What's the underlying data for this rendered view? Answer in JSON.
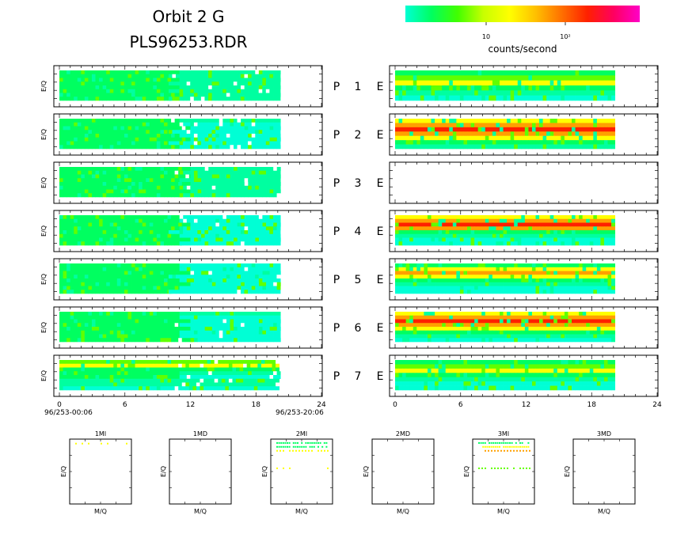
{
  "header": {
    "title_line1": "Orbit 2 G",
    "title_line2": "PLS96253.RDR"
  },
  "colorbar": {
    "colors": [
      "#00ffd5",
      "#00ff60",
      "#40ff00",
      "#c8ff00",
      "#ffff00",
      "#ffc000",
      "#ff7000",
      "#ff2000",
      "#ff0060",
      "#ff00c8"
    ],
    "tick_labels": [
      "10",
      "10²"
    ],
    "unit_label": "counts/second"
  },
  "palette": {
    "cyan": "#00ffd5",
    "aqua": "#00ffa0",
    "green": "#00ff60",
    "lime": "#60ff00",
    "yellow": "#ffff00",
    "orange": "#ffa000",
    "red": "#ff2000"
  },
  "chart_data": [
    {
      "type": "heatmap",
      "id": "left-spectrograms",
      "ylabel": "E/Q",
      "xlim": [
        0,
        24
      ],
      "xticks": [
        "0",
        "6",
        "12",
        "18",
        "24"
      ],
      "data_extent_hours": [
        0,
        20
      ],
      "start_label": "96/253-00:06",
      "end_label": "96/253-20:06",
      "panels": [
        {
          "rows": [
            [
              "green",
              11,
              "aqua",
              20
            ],
            [
              "green",
              10,
              "aqua",
              20
            ],
            [
              "green",
              11,
              "aqua",
              20
            ],
            [
              "green",
              10,
              "aqua",
              20
            ],
            [
              "green",
              11,
              "aqua",
              20
            ],
            [
              "green",
              10,
              "aqua",
              20
            ],
            [
              "green",
              11,
              "aqua",
              20
            ],
            [
              "green",
              10,
              "aqua",
              20
            ]
          ]
        },
        {
          "rows": [
            [
              "green",
              11,
              "aqua",
              20
            ],
            [
              "green",
              11,
              "cyan",
              20
            ],
            [
              "green",
              12,
              "cyan",
              20
            ],
            [
              "green",
              10,
              "cyan",
              20
            ],
            [
              "green",
              11,
              "cyan",
              20
            ],
            [
              "green",
              12,
              "cyan",
              20
            ],
            [
              "green",
              10,
              "cyan",
              20
            ],
            [
              "green",
              11,
              "cyan",
              20
            ]
          ]
        },
        {
          "rows": [
            [
              "green",
              12,
              "aqua",
              20
            ],
            [
              "green",
              11,
              "aqua",
              20
            ],
            [
              "green",
              12,
              "aqua",
              20
            ],
            [
              "green",
              11,
              "aqua",
              20
            ],
            [
              "green",
              12,
              "aqua",
              20
            ],
            [
              "green",
              11,
              "aqua",
              20
            ],
            [
              "green",
              12,
              "aqua",
              20
            ],
            [
              "green",
              11,
              "aqua",
              20
            ]
          ]
        },
        {
          "rows": [
            [
              "green",
              11,
              "cyan",
              20
            ],
            [
              "green",
              11,
              "cyan",
              20
            ],
            [
              "green",
              12,
              "cyan",
              20
            ],
            [
              "green",
              11,
              "cyan",
              20
            ],
            [
              "green",
              10,
              "cyan",
              20
            ],
            [
              "green",
              11,
              "cyan",
              20
            ],
            [
              "green",
              12,
              "cyan",
              20
            ],
            [
              "green",
              11,
              "cyan",
              20
            ]
          ]
        },
        {
          "rows": [
            [
              "green",
              11,
              "cyan",
              20
            ],
            [
              "green",
              11,
              "cyan",
              20
            ],
            [
              "green",
              12,
              "cyan",
              20
            ],
            [
              "green",
              10,
              "cyan",
              20
            ],
            [
              "green",
              11,
              "cyan",
              20
            ],
            [
              "green",
              12,
              "cyan",
              20
            ],
            [
              "green",
              11,
              "cyan",
              20
            ],
            [
              "green",
              10,
              "cyan",
              20
            ]
          ]
        },
        {
          "rows": [
            [
              "green",
              11,
              "aqua",
              20
            ],
            [
              "green",
              11,
              "cyan",
              20
            ],
            [
              "green",
              12,
              "cyan",
              20
            ],
            [
              "green",
              11,
              "cyan",
              20
            ],
            [
              "green",
              12,
              "cyan",
              20
            ],
            [
              "green",
              11,
              "cyan",
              20
            ],
            [
              "green",
              11,
              "cyan",
              20
            ],
            [
              "green",
              12,
              "cyan",
              20
            ]
          ]
        },
        {
          "rows": [
            [
              "lime",
              20
            ],
            [
              "yellow",
              20
            ],
            [
              "green",
              20
            ],
            [
              "green",
              11,
              "aqua",
              20
            ],
            [
              "green",
              11,
              "cyan",
              20
            ],
            [
              "aqua",
              20
            ],
            [
              "aqua",
              20
            ],
            [
              "cyan",
              20
            ]
          ]
        }
      ]
    },
    {
      "type": "heatmap",
      "id": "right-spectrograms",
      "xlim": [
        0,
        24
      ],
      "xticks": [
        "0",
        "6",
        "12",
        "18",
        "24"
      ],
      "data_extent_hours": [
        0,
        20
      ],
      "panels": [
        {
          "rows": [
            [
              "green",
              20
            ],
            [
              "lime",
              20
            ],
            [
              "yellow",
              20
            ],
            [
              "green",
              20
            ],
            [
              "aqua",
              20
            ],
            [
              "cyan",
              20
            ]
          ]
        },
        {
          "rows": [
            [
              "yellow",
              20
            ],
            [
              "orange",
              20
            ],
            [
              "red",
              20
            ],
            [
              "orange",
              20
            ],
            [
              "yellow",
              20
            ],
            [
              "green",
              20
            ],
            [
              "aqua",
              20
            ]
          ]
        },
        {
          "rows": []
        },
        {
          "rows": [
            [
              "yellow",
              20
            ],
            [
              "orange",
              20
            ],
            [
              "red",
              20
            ],
            [
              "orange",
              20
            ],
            [
              "green",
              20
            ],
            [
              "aqua",
              20
            ],
            [
              "cyan",
              20
            ],
            [
              "cyan",
              20
            ]
          ]
        },
        {
          "rows": [
            [
              "green",
              20
            ],
            [
              "yellow",
              20
            ],
            [
              "orange",
              20
            ],
            [
              "yellow",
              20
            ],
            [
              "green",
              20
            ],
            [
              "aqua",
              20
            ],
            [
              "cyan",
              20
            ],
            [
              "cyan",
              20
            ]
          ]
        },
        {
          "rows": [
            [
              "yellow",
              20
            ],
            [
              "orange",
              20
            ],
            [
              "red",
              20
            ],
            [
              "orange",
              20
            ],
            [
              "yellow",
              20
            ],
            [
              "green",
              20
            ],
            [
              "aqua",
              20
            ],
            [
              "cyan",
              20
            ]
          ]
        },
        {
          "rows": [
            [
              "green",
              20
            ],
            [
              "lime",
              20
            ],
            [
              "yellow",
              20
            ],
            [
              "green",
              20
            ],
            [
              "aqua",
              20
            ],
            [
              "cyan",
              20
            ],
            [
              "cyan",
              20
            ]
          ]
        }
      ]
    },
    {
      "type": "scatter",
      "id": "mass-panels",
      "xlabel": "M/Q",
      "ylabel": "E/Q",
      "panels": [
        {
          "title": "1MI",
          "bands": [
            {
              "level": 0.93,
              "color": "yellow",
              "density": "sparse"
            }
          ]
        },
        {
          "title": "1MD",
          "bands": []
        },
        {
          "title": "2MI",
          "bands": [
            {
              "level": 0.94,
              "color": "green",
              "density": "dense"
            },
            {
              "level": 0.88,
              "color": "green",
              "density": "dense"
            },
            {
              "level": 0.82,
              "color": "yellow",
              "density": "medium"
            },
            {
              "level": 0.55,
              "color": "yellow",
              "density": "sparse"
            }
          ]
        },
        {
          "title": "2MD",
          "bands": []
        },
        {
          "title": "3MI",
          "bands": [
            {
              "level": 0.94,
              "color": "green",
              "density": "dense"
            },
            {
              "level": 0.88,
              "color": "yellow",
              "density": "dense"
            },
            {
              "level": 0.82,
              "color": "orange",
              "density": "medium"
            },
            {
              "level": 0.55,
              "color": "lime",
              "density": "medium"
            }
          ]
        },
        {
          "title": "3MD",
          "bands": []
        }
      ]
    }
  ],
  "channels": [
    {
      "plate": "P",
      "num": "1",
      "sensor": "E"
    },
    {
      "plate": "P",
      "num": "2",
      "sensor": "E"
    },
    {
      "plate": "P",
      "num": "3",
      "sensor": "E"
    },
    {
      "plate": "P",
      "num": "4",
      "sensor": "E"
    },
    {
      "plate": "P",
      "num": "5",
      "sensor": "E"
    },
    {
      "plate": "P",
      "num": "6",
      "sensor": "E"
    },
    {
      "plate": "P",
      "num": "7",
      "sensor": "E"
    }
  ]
}
